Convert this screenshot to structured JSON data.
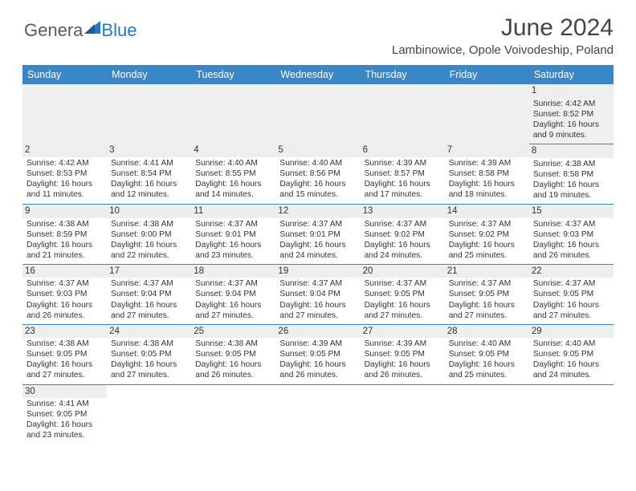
{
  "logo": {
    "general": "Genera",
    "blue": "Blue"
  },
  "title": "June 2024",
  "location": "Lambinowice, Opole Voivodeship, Poland",
  "header_bg": "#3a87c8",
  "weekdays": [
    "Sunday",
    "Monday",
    "Tuesday",
    "Wednesday",
    "Thursday",
    "Friday",
    "Saturday"
  ],
  "weeks": [
    [
      null,
      null,
      null,
      null,
      null,
      null,
      {
        "n": "1",
        "sr": "Sunrise: 4:42 AM",
        "ss": "Sunset: 8:52 PM",
        "dl": "Daylight: 16 hours and 9 minutes."
      }
    ],
    [
      {
        "n": "2",
        "sr": "Sunrise: 4:42 AM",
        "ss": "Sunset: 8:53 PM",
        "dl": "Daylight: 16 hours and 11 minutes."
      },
      {
        "n": "3",
        "sr": "Sunrise: 4:41 AM",
        "ss": "Sunset: 8:54 PM",
        "dl": "Daylight: 16 hours and 12 minutes."
      },
      {
        "n": "4",
        "sr": "Sunrise: 4:40 AM",
        "ss": "Sunset: 8:55 PM",
        "dl": "Daylight: 16 hours and 14 minutes."
      },
      {
        "n": "5",
        "sr": "Sunrise: 4:40 AM",
        "ss": "Sunset: 8:56 PM",
        "dl": "Daylight: 16 hours and 15 minutes."
      },
      {
        "n": "6",
        "sr": "Sunrise: 4:39 AM",
        "ss": "Sunset: 8:57 PM",
        "dl": "Daylight: 16 hours and 17 minutes."
      },
      {
        "n": "7",
        "sr": "Sunrise: 4:39 AM",
        "ss": "Sunset: 8:58 PM",
        "dl": "Daylight: 16 hours and 18 minutes."
      },
      {
        "n": "8",
        "sr": "Sunrise: 4:38 AM",
        "ss": "Sunset: 8:58 PM",
        "dl": "Daylight: 16 hours and 19 minutes."
      }
    ],
    [
      {
        "n": "9",
        "sr": "Sunrise: 4:38 AM",
        "ss": "Sunset: 8:59 PM",
        "dl": "Daylight: 16 hours and 21 minutes."
      },
      {
        "n": "10",
        "sr": "Sunrise: 4:38 AM",
        "ss": "Sunset: 9:00 PM",
        "dl": "Daylight: 16 hours and 22 minutes."
      },
      {
        "n": "11",
        "sr": "Sunrise: 4:37 AM",
        "ss": "Sunset: 9:01 PM",
        "dl": "Daylight: 16 hours and 23 minutes."
      },
      {
        "n": "12",
        "sr": "Sunrise: 4:37 AM",
        "ss": "Sunset: 9:01 PM",
        "dl": "Daylight: 16 hours and 24 minutes."
      },
      {
        "n": "13",
        "sr": "Sunrise: 4:37 AM",
        "ss": "Sunset: 9:02 PM",
        "dl": "Daylight: 16 hours and 24 minutes."
      },
      {
        "n": "14",
        "sr": "Sunrise: 4:37 AM",
        "ss": "Sunset: 9:02 PM",
        "dl": "Daylight: 16 hours and 25 minutes."
      },
      {
        "n": "15",
        "sr": "Sunrise: 4:37 AM",
        "ss": "Sunset: 9:03 PM",
        "dl": "Daylight: 16 hours and 26 minutes."
      }
    ],
    [
      {
        "n": "16",
        "sr": "Sunrise: 4:37 AM",
        "ss": "Sunset: 9:03 PM",
        "dl": "Daylight: 16 hours and 26 minutes."
      },
      {
        "n": "17",
        "sr": "Sunrise: 4:37 AM",
        "ss": "Sunset: 9:04 PM",
        "dl": "Daylight: 16 hours and 27 minutes."
      },
      {
        "n": "18",
        "sr": "Sunrise: 4:37 AM",
        "ss": "Sunset: 9:04 PM",
        "dl": "Daylight: 16 hours and 27 minutes."
      },
      {
        "n": "19",
        "sr": "Sunrise: 4:37 AM",
        "ss": "Sunset: 9:04 PM",
        "dl": "Daylight: 16 hours and 27 minutes."
      },
      {
        "n": "20",
        "sr": "Sunrise: 4:37 AM",
        "ss": "Sunset: 9:05 PM",
        "dl": "Daylight: 16 hours and 27 minutes."
      },
      {
        "n": "21",
        "sr": "Sunrise: 4:37 AM",
        "ss": "Sunset: 9:05 PM",
        "dl": "Daylight: 16 hours and 27 minutes."
      },
      {
        "n": "22",
        "sr": "Sunrise: 4:37 AM",
        "ss": "Sunset: 9:05 PM",
        "dl": "Daylight: 16 hours and 27 minutes."
      }
    ],
    [
      {
        "n": "23",
        "sr": "Sunrise: 4:38 AM",
        "ss": "Sunset: 9:05 PM",
        "dl": "Daylight: 16 hours and 27 minutes."
      },
      {
        "n": "24",
        "sr": "Sunrise: 4:38 AM",
        "ss": "Sunset: 9:05 PM",
        "dl": "Daylight: 16 hours and 27 minutes."
      },
      {
        "n": "25",
        "sr": "Sunrise: 4:38 AM",
        "ss": "Sunset: 9:05 PM",
        "dl": "Daylight: 16 hours and 26 minutes."
      },
      {
        "n": "26",
        "sr": "Sunrise: 4:39 AM",
        "ss": "Sunset: 9:05 PM",
        "dl": "Daylight: 16 hours and 26 minutes."
      },
      {
        "n": "27",
        "sr": "Sunrise: 4:39 AM",
        "ss": "Sunset: 9:05 PM",
        "dl": "Daylight: 16 hours and 26 minutes."
      },
      {
        "n": "28",
        "sr": "Sunrise: 4:40 AM",
        "ss": "Sunset: 9:05 PM",
        "dl": "Daylight: 16 hours and 25 minutes."
      },
      {
        "n": "29",
        "sr": "Sunrise: 4:40 AM",
        "ss": "Sunset: 9:05 PM",
        "dl": "Daylight: 16 hours and 24 minutes."
      }
    ],
    [
      {
        "n": "30",
        "sr": "Sunrise: 4:41 AM",
        "ss": "Sunset: 9:05 PM",
        "dl": "Daylight: 16 hours and 23 minutes."
      },
      null,
      null,
      null,
      null,
      null,
      null
    ]
  ]
}
